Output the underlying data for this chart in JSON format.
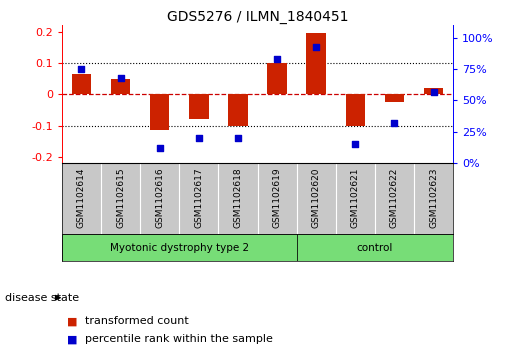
{
  "title": "GDS5276 / ILMN_1840451",
  "samples": [
    "GSM1102614",
    "GSM1102615",
    "GSM1102616",
    "GSM1102617",
    "GSM1102618",
    "GSM1102619",
    "GSM1102620",
    "GSM1102621",
    "GSM1102622",
    "GSM1102623"
  ],
  "transformed_count": [
    0.065,
    0.048,
    -0.115,
    -0.08,
    -0.1,
    0.1,
    0.195,
    -0.1,
    -0.025,
    0.02
  ],
  "percentile_rank": [
    75,
    68,
    12,
    20,
    20,
    83,
    93,
    15,
    32,
    57
  ],
  "disease_groups": [
    {
      "label": "Myotonic dystrophy type 2",
      "start": 0,
      "end": 6,
      "color": "#77dd77"
    },
    {
      "label": "control",
      "start": 6,
      "end": 10,
      "color": "#77dd77"
    }
  ],
  "ylim_left": [
    -0.22,
    0.22
  ],
  "ylim_right": [
    0,
    110
  ],
  "yticks_left": [
    -0.2,
    -0.1,
    0.0,
    0.1,
    0.2
  ],
  "ytick_labels_left": [
    "-0.2",
    "-0.1",
    "0",
    "0.1",
    "0.2"
  ],
  "yticks_right_vals": [
    0,
    25,
    50,
    75,
    100
  ],
  "yticks_right_labels": [
    "0%",
    "25%",
    "50%",
    "75%",
    "100%"
  ],
  "bar_color": "#cc2200",
  "scatter_color": "#0000cc",
  "hline_zero_color": "#cc0000",
  "hline_dotted_color": "black",
  "legend_items": [
    {
      "label": "transformed count",
      "color": "#cc2200"
    },
    {
      "label": "percentile rank within the sample",
      "color": "#0000cc"
    }
  ],
  "sample_bg_color": "#c8c8c8",
  "group_separator": 6,
  "bar_width": 0.5
}
